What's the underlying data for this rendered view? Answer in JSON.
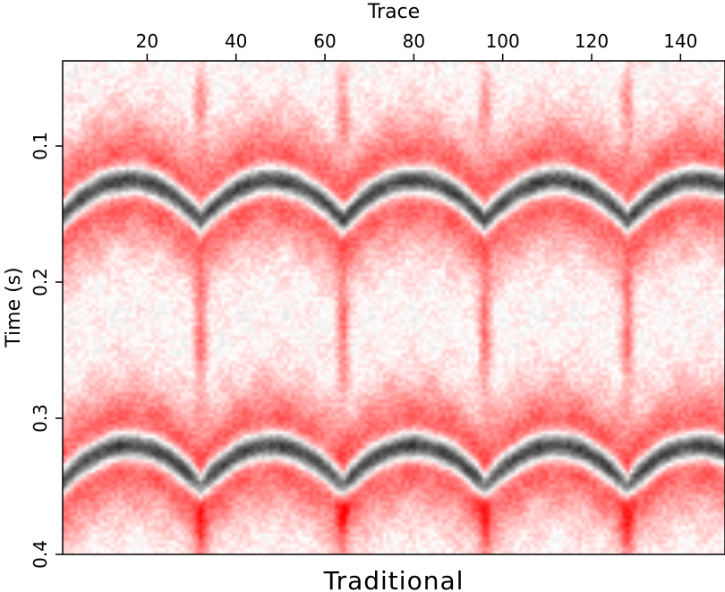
{
  "chart_data": {
    "type": "heatmap",
    "title": "",
    "caption": "Traditional",
    "xlabel": "Trace",
    "ylabel": "Time (s)",
    "x_axis_position": "top",
    "xlim": [
      1,
      150
    ],
    "ylim": [
      0.0375,
      0.4
    ],
    "y_direction": "downward",
    "x_ticks": [
      20,
      40,
      60,
      80,
      100,
      120,
      140
    ],
    "x_tick_labels": [
      "20",
      "40",
      "60",
      "80",
      "100",
      "120",
      "140"
    ],
    "y_ticks": [
      0.1,
      0.2,
      0.3,
      0.4
    ],
    "y_tick_labels": [
      "0.1",
      "0.2",
      "0.3",
      "0.4"
    ],
    "colormap": {
      "positive": "#000000",
      "zero": "#ffffff",
      "negative": "#ff0000"
    },
    "segment_apex_traces": [
      16,
      48,
      80,
      112,
      144
    ],
    "segment_cusp_traces": [
      32,
      64,
      96,
      128
    ],
    "events": [
      {
        "center_time_at_apex": 0.125,
        "center_time_at_cusp": 0.155
      },
      {
        "center_time_at_apex": 0.32,
        "center_time_at_cusp": 0.35
      }
    ],
    "grid": false
  }
}
